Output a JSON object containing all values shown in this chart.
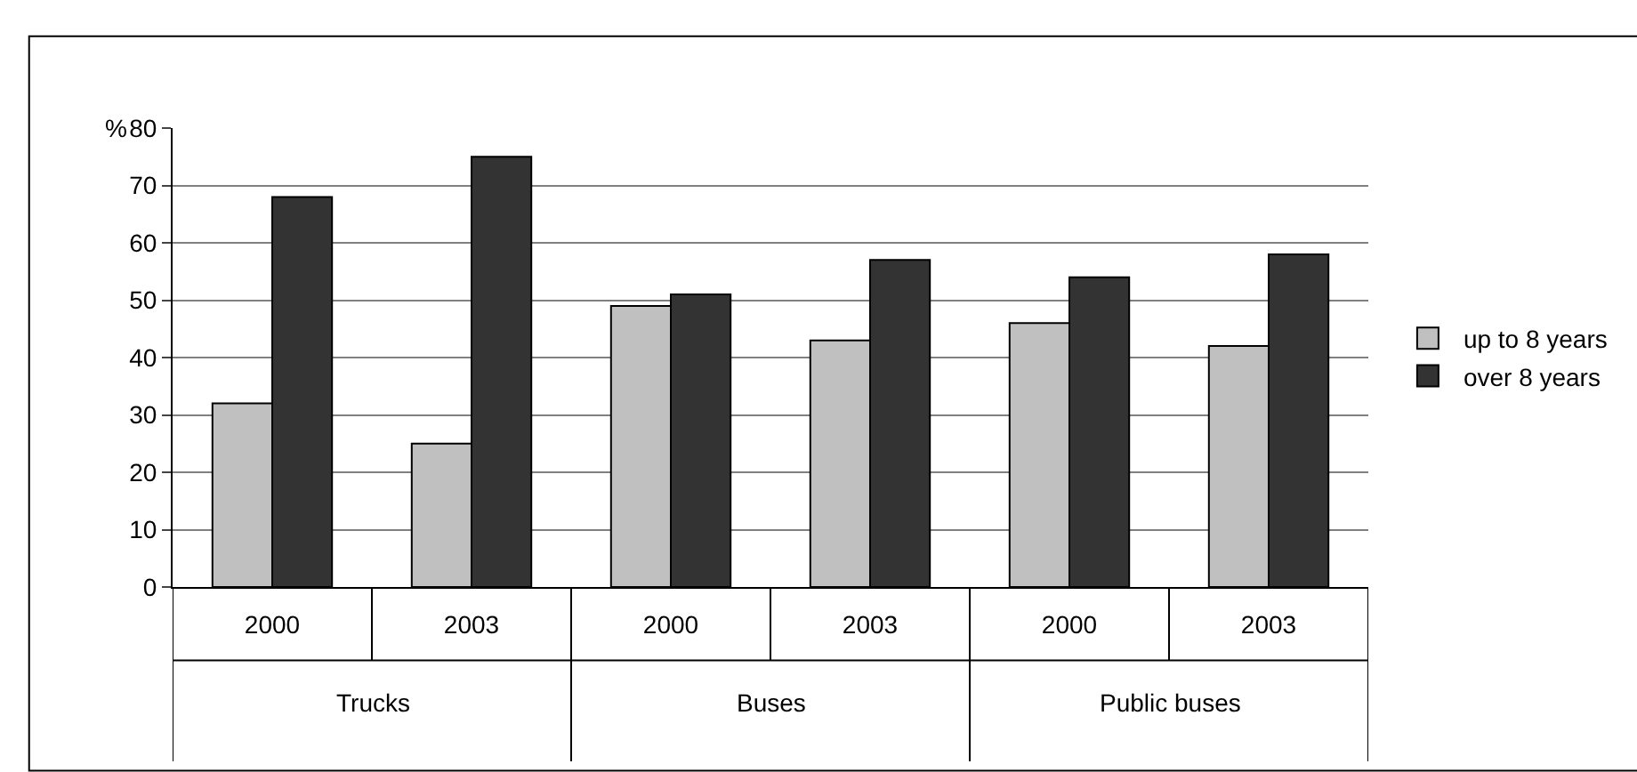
{
  "chart_data": {
    "type": "bar",
    "ylabel": "%",
    "categories": [
      "2000",
      "2003",
      "2000",
      "2003",
      "2000",
      "2003"
    ],
    "series": [
      {
        "name": "up to 8 years",
        "color": "#c0c0c0",
        "values": [
          32,
          25,
          49,
          43,
          46,
          42
        ]
      },
      {
        "name": "over 8 years",
        "color": "#333333",
        "values": [
          68,
          75,
          51,
          57,
          54,
          58
        ]
      }
    ],
    "annotations": [
      "Trucks",
      "Buses",
      "Public buses"
    ],
    "ylim": [
      0,
      80
    ],
    "yticks": [
      0,
      10,
      20,
      30,
      40,
      50,
      60,
      70,
      80
    ],
    "grid": "y",
    "legend": "right"
  }
}
